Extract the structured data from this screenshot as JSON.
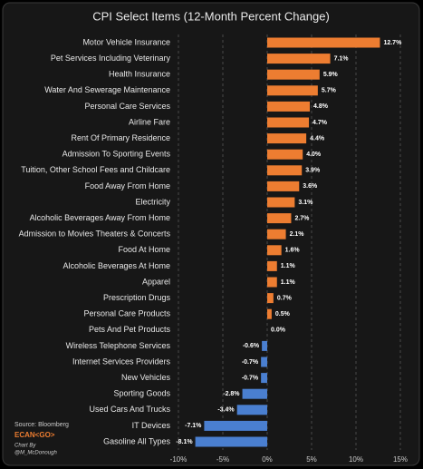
{
  "chart_data": {
    "type": "hbar",
    "title": "CPI Select Items (12-Month Percent Change)",
    "categories": [
      "Motor Vehicle Insurance",
      "Pet Services Including Veterinary",
      "Health Insurance",
      "Water And Sewerage Maintenance",
      "Personal Care Services",
      "Airline Fare",
      "Rent Of Primary Residence",
      "Admission To Sporting Events",
      "Tuition, Other School Fees and Childcare",
      "Food Away From Home",
      "Electricity",
      "Alcoholic Beverages Away From Home",
      "Admission to Movies Theaters & Concerts",
      "Food At Home",
      "Alcoholic Beverages At Home",
      "Apparel",
      "Prescription Drugs",
      "Personal Care Products",
      "Pets And Pet Products",
      "Wireless Telephone Services",
      "Internet Services Providers",
      "New Vehicles",
      "Sporting Goods",
      "Used Cars And Trucks",
      "IT Devices",
      "Gasoline All Types"
    ],
    "values": [
      12.7,
      7.1,
      5.9,
      5.7,
      4.8,
      4.7,
      4.4,
      4.0,
      3.9,
      3.6,
      3.1,
      2.7,
      2.1,
      1.6,
      1.1,
      1.1,
      0.7,
      0.5,
      0.0,
      -0.6,
      -0.7,
      -0.7,
      -2.8,
      -3.4,
      -7.1,
      -8.1
    ],
    "value_labels": [
      "12.7%",
      "7.1%",
      "5.9%",
      "5.7%",
      "4.8%",
      "4.7%",
      "4.4%",
      "4.0%",
      "3.9%",
      "3.6%",
      "3.1%",
      "2.7%",
      "2.1%",
      "1.6%",
      "1.1%",
      "1.1%",
      "0.7%",
      "0.5%",
      "0.0%",
      "-0.6%",
      "-0.7%",
      "-0.7%",
      "-2.8%",
      "-3.4%",
      "-7.1%",
      "-8.1%"
    ],
    "positive_color": "#ed7d31",
    "negative_color": "#4a7fd0",
    "xlim": [
      -10,
      15
    ],
    "xticks": [
      {
        "value": -10,
        "label": "-10%"
      },
      {
        "value": -5,
        "label": "-5%"
      },
      {
        "value": 0,
        "label": "0%"
      },
      {
        "value": 5,
        "label": "5%"
      },
      {
        "value": 10,
        "label": "10%"
      },
      {
        "value": 15,
        "label": "15%"
      }
    ],
    "grid": true,
    "source": "Source: Bloomberg",
    "source_ticker": "ECAN<GO>",
    "credit": [
      "Chart By",
      "@M_McDonough"
    ]
  }
}
